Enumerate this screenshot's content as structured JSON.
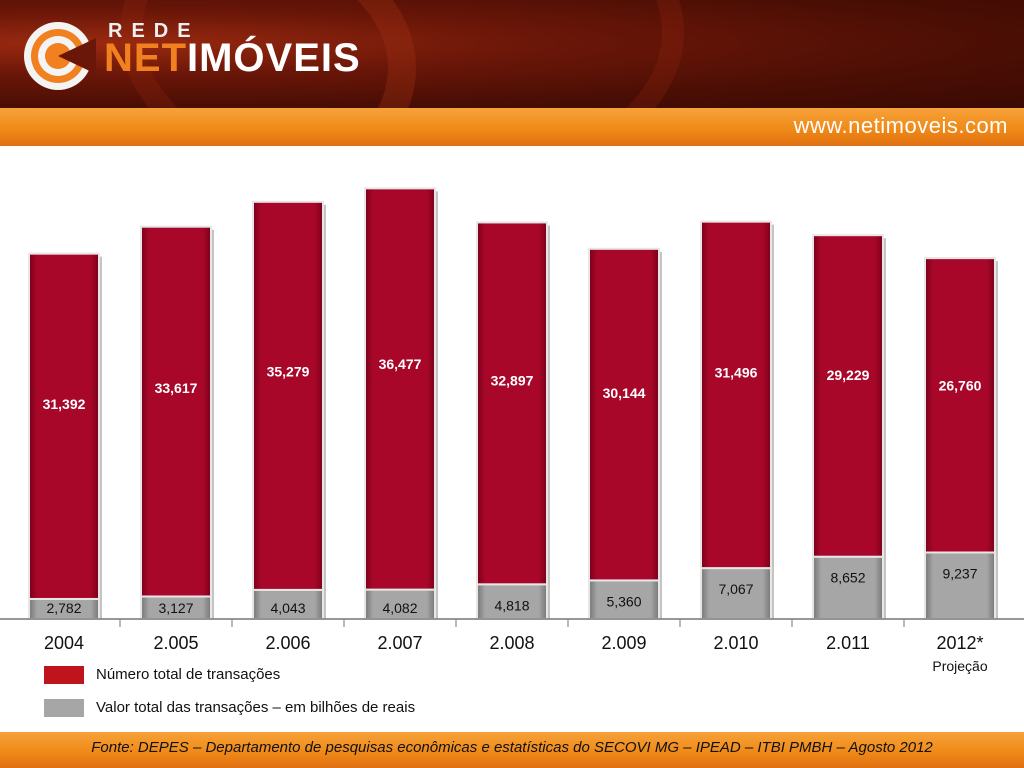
{
  "brand": {
    "small": "REDE",
    "net": "NET",
    "imoveis": "IMÓVEIS",
    "url": "www.netimoveis.com"
  },
  "colors": {
    "series_transactions": "#a8072a",
    "series_value": "#a6a6a6",
    "header_dark": "#4a0e04",
    "band_orange": "#f08a18"
  },
  "chart_data": {
    "type": "bar",
    "stacked": true,
    "categories": [
      "2004",
      "2.005",
      "2.006",
      "2.007",
      "2.008",
      "2.009",
      "2.010",
      "2.011",
      "2012*"
    ],
    "category_note": {
      "index": 8,
      "text": "Projeção"
    },
    "series": [
      {
        "name": "Valor total das transações – em bilhões de reais",
        "values": [
          2.782,
          3.127,
          4.043,
          4.082,
          4.818,
          5.36,
          7.067,
          8.652,
          9.237
        ],
        "labels": [
          "2,782",
          "3,127",
          "4,043",
          "4,082",
          "4,818",
          "5,360",
          "7,067",
          "8,652",
          "9,237"
        ],
        "color": "#a6a6a6"
      },
      {
        "name": "Número total de transações",
        "values": [
          31.392,
          33.617,
          35.279,
          36.477,
          32.897,
          30.144,
          31.496,
          29.229,
          26.76
        ],
        "labels": [
          "31,392",
          "33,617",
          "35,279",
          "36,477",
          "32,897",
          "30,144",
          "31,496",
          "29,229",
          "26,760"
        ],
        "color": "#a8072a"
      }
    ],
    "legend": [
      {
        "label": "Número total de transações",
        "color": "#c0141c"
      },
      {
        "label": "Valor total das transações – em bilhões de reais",
        "color": "#a6a6a6"
      }
    ],
    "legend_position": "bottom-left",
    "grid": false
  },
  "footer": {
    "source": "Fonte:  DEPES – Departamento de pesquisas econômicas e estatísticas do SECOVI MG – IPEAD – ITBI PMBH – Agosto 2012"
  }
}
